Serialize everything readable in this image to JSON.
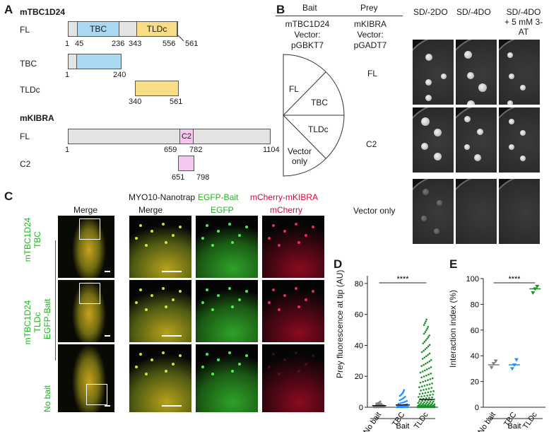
{
  "panel_A": {
    "label": "A",
    "protein1": {
      "name": "mTBC1D24",
      "constructs": [
        {
          "name": "FL",
          "domains": [
            "TBC",
            "TLDc"
          ],
          "ticks": [
            "1",
            "45",
            "236",
            "343",
            "556",
            "561"
          ]
        },
        {
          "name": "TBC",
          "ticks": [
            "1",
            "240"
          ]
        },
        {
          "name": "TLDc",
          "ticks": [
            "340",
            "561"
          ]
        }
      ]
    },
    "protein2": {
      "name": "mKIBRA",
      "constructs": [
        {
          "name": "FL",
          "domains": [
            "C2"
          ],
          "ticks": [
            "1",
            "659",
            "782",
            "1104"
          ]
        },
        {
          "name": "C2",
          "ticks": [
            "651",
            "798"
          ]
        }
      ]
    },
    "colors": {
      "tbc": "#a9d8f2",
      "tldc": "#f8dc86",
      "c2": "#f5c6ef",
      "backbone": "#e3e3e3"
    }
  },
  "panel_B": {
    "label": "B",
    "bait_header": "Bait",
    "prey_header": "Prey",
    "bait_name": "mTBC1D24",
    "bait_vector": "Vector: pGBKT7",
    "prey_name": "mKIBRA",
    "prey_vector": "Vector: pGADT7",
    "bait_rows": [
      "FL",
      "TBC",
      "TLDc",
      "Vector only"
    ],
    "prey_rows": [
      "FL",
      "C2",
      "Vector only"
    ],
    "media": [
      "SD/-2DO",
      "SD/-4DO",
      "SD/-4DO",
      "+ 5 mM 3-AT"
    ]
  },
  "panel_C": {
    "label": "C",
    "header": {
      "nanotrap": "MYO10-Nanotrap",
      "bait": "EGFP-Bait",
      "prey": "mCherry-mKIBRA"
    },
    "columns": [
      "Merge",
      "Merge",
      "EGFP",
      "mCherry"
    ],
    "side_label": "EGFP-Bait",
    "rows": [
      {
        "line1": "mTBC1D24",
        "line2": "TBC"
      },
      {
        "line1": "mTBC1D24",
        "line2": "TLDc"
      },
      {
        "line1": "No bait",
        "line2": ""
      }
    ]
  },
  "panel_D": {
    "label": "D",
    "significance": "****"
  },
  "panel_E": {
    "label": "E",
    "significance": "****"
  },
  "chart_data": [
    {
      "type": "scatter",
      "panel": "D",
      "ylabel": "Prey fluorescence at tip (AU)",
      "xlabel": "Bait",
      "categories": [
        "No bait",
        "TBC",
        "TLDc"
      ],
      "yticks": [
        "0",
        "20",
        "40",
        "60",
        "80"
      ],
      "ylim": [
        0,
        85
      ],
      "medians": [
        1,
        1.5,
        5
      ],
      "max_values": [
        4,
        12,
        58
      ],
      "colors": [
        "#7f7f7f",
        "#1e90ff",
        "#1a8f2a"
      ]
    },
    {
      "type": "scatter",
      "panel": "E",
      "ylabel": "Interaction index (%)",
      "xlabel": "Bait",
      "categories": [
        "No bait",
        "TBC",
        "TLDc"
      ],
      "yticks": [
        "0",
        "20",
        "40",
        "60",
        "80",
        "100"
      ],
      "ylim": [
        0,
        100
      ],
      "means": [
        33,
        33,
        92
      ],
      "points": [
        [
          31,
          34,
          36
        ],
        [
          30,
          33,
          37
        ],
        [
          89,
          92,
          94
        ]
      ],
      "colors": [
        "#7f7f7f",
        "#1e90ff",
        "#1a8f2a"
      ]
    }
  ]
}
